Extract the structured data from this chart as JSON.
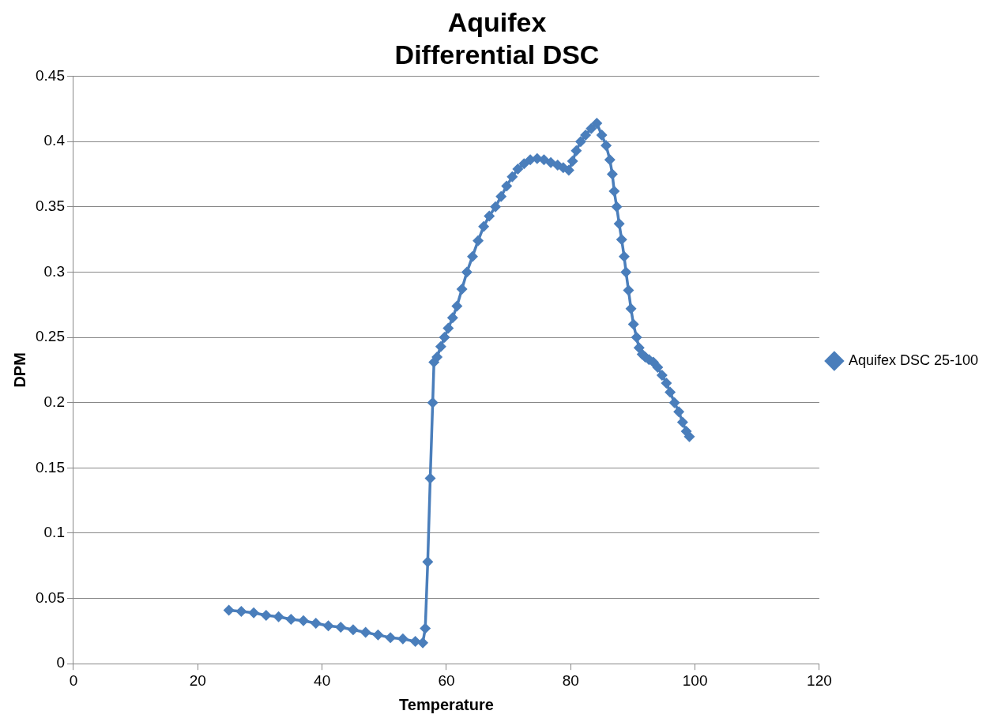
{
  "chart_data": {
    "type": "line",
    "title": "Aquifex Differential DSC",
    "xlabel": "Temperature",
    "ylabel": "DPM",
    "xlim": [
      0,
      120
    ],
    "xticks": [
      0,
      20,
      40,
      60,
      80,
      100,
      120
    ],
    "ylim": [
      0,
      0.45
    ],
    "yticks": [
      0,
      0.05,
      0.1,
      0.15,
      0.2,
      0.25,
      0.3,
      0.35,
      0.4,
      0.45
    ],
    "grid": "y",
    "legend": "right",
    "marker": "diamond",
    "line_style": "solid",
    "series": [
      {
        "name": "Aquifex DSC 25-100",
        "color": "#4a7ebb",
        "x": [
          25,
          27,
          29,
          31,
          33,
          35,
          37,
          39,
          41,
          43,
          45,
          47,
          49,
          51,
          53,
          55,
          56.2,
          56.6,
          57.0,
          57.4,
          57.8,
          58.0,
          58.5,
          59.1,
          59.7,
          60.3,
          61.0,
          61.7,
          62.5,
          63.3,
          64.2,
          65.1,
          66.0,
          66.9,
          67.9,
          68.8,
          69.7,
          70.6,
          71.5,
          72.5,
          73.5,
          74.6,
          75.7,
          76.8,
          77.9,
          78.8,
          79.7,
          80.3,
          80.9,
          81.6,
          82.4,
          83.3,
          84.2,
          85.0,
          85.7,
          86.3,
          86.7,
          87.0,
          87.4,
          87.8,
          88.2,
          88.6,
          88.9,
          89.3,
          89.7,
          90.1,
          90.6,
          91.0,
          91.5,
          92.0,
          92.6,
          93.3,
          94.0,
          94.7,
          95.4,
          96.0,
          96.7,
          97.4,
          98.0,
          98.6,
          99.1
        ],
        "values": [
          0.041,
          0.04,
          0.039,
          0.037,
          0.036,
          0.034,
          0.033,
          0.031,
          0.029,
          0.028,
          0.026,
          0.024,
          0.022,
          0.02,
          0.019,
          0.017,
          0.016,
          0.027,
          0.078,
          0.142,
          0.2,
          0.231,
          0.235,
          0.243,
          0.25,
          0.257,
          0.265,
          0.274,
          0.287,
          0.3,
          0.312,
          0.324,
          0.335,
          0.343,
          0.35,
          0.358,
          0.366,
          0.373,
          0.379,
          0.383,
          0.386,
          0.387,
          0.386,
          0.384,
          0.382,
          0.38,
          0.378,
          0.385,
          0.393,
          0.4,
          0.405,
          0.41,
          0.414,
          0.405,
          0.397,
          0.386,
          0.375,
          0.362,
          0.35,
          0.337,
          0.325,
          0.312,
          0.3,
          0.286,
          0.272,
          0.26,
          0.25,
          0.242,
          0.237,
          0.235,
          0.233,
          0.231,
          0.227,
          0.221,
          0.215,
          0.208,
          0.2,
          0.193,
          0.185,
          0.178,
          0.174
        ]
      }
    ]
  }
}
